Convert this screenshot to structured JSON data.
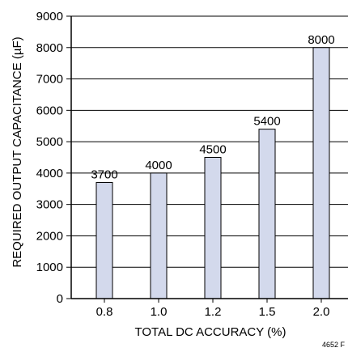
{
  "chart_data": {
    "type": "bar",
    "title": "",
    "xlabel": "TOTAL DC ACCURACY (%)",
    "ylabel": "REQUIRED OUTPUT CAPACITANCE (µF)",
    "categories": [
      "0.8",
      "1.0",
      "1.2",
      "1.5",
      "2.0"
    ],
    "values": [
      3700,
      4000,
      4500,
      5400,
      8000
    ],
    "data_labels": [
      "3700",
      "4000",
      "4500",
      "5400",
      "8000"
    ],
    "ylim": [
      0,
      9000
    ],
    "yticks": [
      0,
      1000,
      2000,
      3000,
      4000,
      5000,
      6000,
      7000,
      8000,
      9000
    ],
    "ytick_labels": [
      "0",
      "1000",
      "2000",
      "3000",
      "4000",
      "5000",
      "6000",
      "7000",
      "8000",
      "9000"
    ],
    "grid": "horizontal",
    "colors": {
      "bar_fill": "#d3d9ec",
      "bar_stroke": "#000000",
      "axis": "#000000",
      "grid": "#000000"
    }
  },
  "figure_id": "4652 F"
}
